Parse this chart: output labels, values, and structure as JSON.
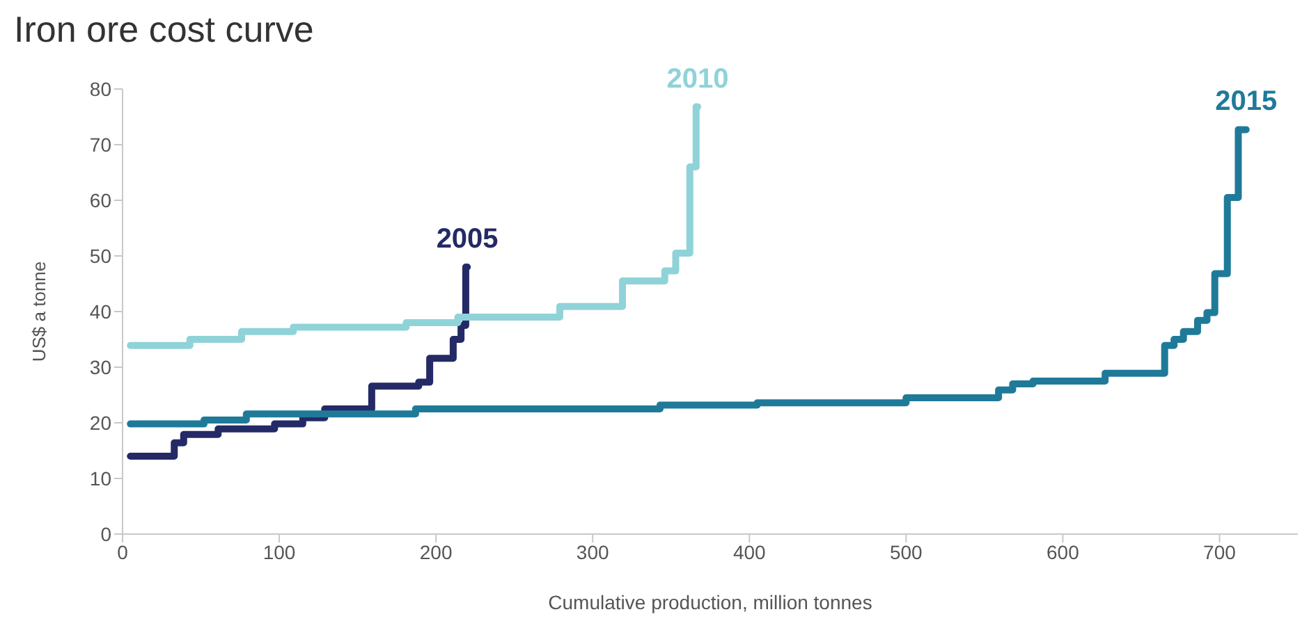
{
  "chart_data": {
    "type": "step",
    "title": "Iron ore cost curve",
    "xlabel": "Cumulative production, million tonnes",
    "ylabel": "US$ a tonne",
    "xlim": [
      0,
      750
    ],
    "xticks": [
      0,
      100,
      200,
      300,
      400,
      500,
      600,
      700
    ],
    "ylim": [
      0,
      80
    ],
    "yticks": [
      0,
      10,
      20,
      30,
      40,
      50,
      60,
      70,
      80
    ],
    "grid": false,
    "legend": false,
    "line_style": "solid",
    "marker": "none",
    "series": [
      {
        "name": "2005",
        "color": "#232a66",
        "x": [
          5,
          33,
          39,
          61,
          97,
          115,
          129,
          159,
          189,
          196,
          211,
          216,
          219,
          220
        ],
        "values": [
          14,
          16.4,
          17.9,
          18.9,
          19.8,
          20.9,
          22.5,
          26.6,
          27.3,
          31.6,
          35,
          37.5,
          48,
          48
        ]
      },
      {
        "name": "2010",
        "color": "#8fd3d8",
        "x": [
          5,
          43,
          76,
          109,
          181,
          214,
          279,
          319,
          346,
          353,
          362,
          366,
          367
        ],
        "values": [
          33.9,
          35,
          36.4,
          37.2,
          38,
          39,
          40.9,
          45.5,
          47.3,
          50.5,
          66,
          76.8,
          76.8
        ]
      },
      {
        "name": "2015",
        "color": "#1f7a99",
        "x": [
          5,
          52,
          79,
          187,
          343,
          405,
          500,
          559,
          568,
          581,
          627,
          665,
          671,
          677,
          686,
          692,
          697,
          705,
          712,
          717
        ],
        "values": [
          19.8,
          20.5,
          21.6,
          22.5,
          23.2,
          23.6,
          24.5,
          25.9,
          27,
          27.5,
          28.9,
          33.9,
          35,
          36.4,
          38.4,
          39.8,
          46.8,
          60.5,
          72.7,
          72.7
        ]
      }
    ]
  }
}
